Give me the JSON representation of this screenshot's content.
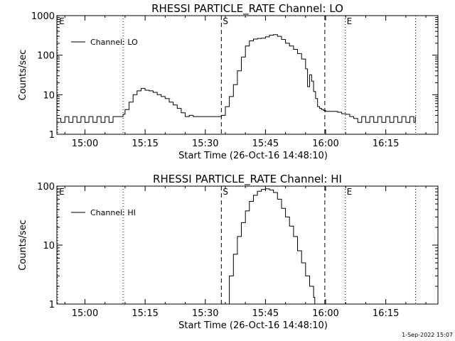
{
  "footer": {
    "timestamp": "1-Sep-2022 15:07"
  },
  "chart_data": [
    {
      "type": "line",
      "title": "RHESSI PARTICLE_RATE Channel: LO",
      "xlabel": "Start Time (26-Oct-16 14:48:10)",
      "ylabel": "Counts/sec",
      "x_unit": "minutes of day (HH:MM)",
      "xlim": [
        893,
        988
      ],
      "ylim": [
        1,
        1000
      ],
      "y_scale": "log",
      "xticks": [
        {
          "v": 900,
          "label": "15:00"
        },
        {
          "v": 915,
          "label": "15:15"
        },
        {
          "v": 930,
          "label": "15:30"
        },
        {
          "v": 945,
          "label": "15:45"
        },
        {
          "v": 960,
          "label": "16:00"
        },
        {
          "v": 975,
          "label": "16:15"
        }
      ],
      "yticks": [
        {
          "v": 1,
          "label": "1"
        },
        {
          "v": 10,
          "label": "10"
        },
        {
          "v": 100,
          "label": "100"
        },
        {
          "v": 1000,
          "label": "1000"
        }
      ],
      "legend": {
        "label": "Channel: LO",
        "placement": "top-left"
      },
      "markers": [
        {
          "x": 893.2,
          "label": "E",
          "style": "dotted"
        },
        {
          "x": 909.5,
          "label": "",
          "style": "dotted"
        },
        {
          "x": 934.0,
          "label": "S",
          "style": "dashed"
        },
        {
          "x": 959.8,
          "label": "",
          "style": "dashed"
        },
        {
          "x": 964.9,
          "label": "E",
          "style": "dotted"
        },
        {
          "x": 982.4,
          "label": "",
          "style": "dotted"
        }
      ],
      "series": [
        {
          "name": "Channel: LO",
          "x": [
            893.2,
            894.0,
            895.0,
            896.0,
            897.0,
            898.0,
            899.0,
            900.0,
            901.0,
            902.0,
            903.0,
            904.0,
            905.0,
            906.0,
            907.0,
            908.0,
            909.0,
            909.5,
            910.0,
            911.0,
            912.0,
            913.0,
            914.0,
            915.0,
            916.0,
            917.0,
            918.0,
            919.0,
            920.0,
            921.0,
            922.0,
            923.0,
            924.0,
            925.0,
            926.0,
            927.0,
            928.0,
            929.0,
            930.0,
            931.0,
            932.0,
            933.0,
            934.0,
            935.0,
            936.0,
            937.0,
            938.0,
            939.0,
            940.0,
            941.0,
            942.0,
            943.0,
            944.0,
            945.0,
            946.0,
            947.0,
            948.0,
            949.0,
            950.0,
            951.0,
            952.0,
            953.0,
            954.0,
            955.0,
            955.5,
            956.0,
            956.5,
            957.0,
            957.5,
            958.0,
            958.5,
            959.0,
            959.5,
            960.0,
            961.0,
            962.0,
            963.0,
            964.0,
            965.0,
            966.0,
            967.0,
            968.0,
            969.0,
            970.0,
            971.0,
            972.0,
            973.0,
            974.0,
            975.0,
            976.0,
            977.0,
            978.0,
            979.0,
            980.0,
            981.0,
            982.0,
            982.4
          ],
          "y": [
            2.5,
            2.0,
            2.8,
            2.0,
            2.8,
            2.0,
            2.8,
            2.0,
            2.8,
            2.0,
            2.8,
            2.0,
            2.8,
            2.0,
            2.8,
            2.8,
            2.8,
            3.2,
            4.2,
            6.5,
            10.0,
            12.5,
            14.5,
            13.0,
            12.5,
            11.5,
            10.0,
            9.0,
            8.0,
            6.5,
            5.5,
            4.5,
            3.5,
            2.8,
            3.0,
            2.8,
            2.8,
            2.8,
            2.8,
            2.8,
            2.8,
            2.8,
            3.0,
            5.0,
            9.0,
            18.0,
            40.0,
            90.0,
            170.0,
            230.0,
            255.0,
            265.0,
            270.0,
            290.0,
            320.0,
            330.0,
            300.0,
            250.0,
            200.0,
            170.0,
            140.0,
            110.0,
            80.0,
            45.0,
            16.0,
            32.0,
            22.0,
            12.0,
            8.0,
            5.0,
            4.5,
            4.2,
            4.0,
            3.8,
            3.8,
            3.8,
            3.6,
            3.3,
            3.2,
            2.8,
            2.5,
            2.0,
            2.8,
            2.0,
            2.8,
            2.0,
            2.8,
            2.0,
            2.8,
            2.0,
            2.8,
            2.0,
            2.8,
            2.0,
            2.8,
            2.0,
            2.8
          ]
        }
      ]
    },
    {
      "type": "line",
      "title": "RHESSI PARTICLE_RATE Channel: HI",
      "xlabel": "Start Time (26-Oct-16 14:48:10)",
      "ylabel": "Counts/sec",
      "x_unit": "minutes of day (HH:MM)",
      "xlim": [
        893,
        988
      ],
      "ylim": [
        1,
        100
      ],
      "y_scale": "log",
      "xticks": [
        {
          "v": 900,
          "label": "15:00"
        },
        {
          "v": 915,
          "label": "15:15"
        },
        {
          "v": 930,
          "label": "15:30"
        },
        {
          "v": 945,
          "label": "15:45"
        },
        {
          "v": 960,
          "label": "16:00"
        },
        {
          "v": 975,
          "label": "16:15"
        }
      ],
      "yticks": [
        {
          "v": 1,
          "label": "1"
        },
        {
          "v": 10,
          "label": "10"
        },
        {
          "v": 100,
          "label": "100"
        }
      ],
      "legend": {
        "label": "Channel: HI",
        "placement": "top-left"
      },
      "markers": [
        {
          "x": 893.2,
          "label": "E",
          "style": "dotted"
        },
        {
          "x": 909.5,
          "label": "",
          "style": "dotted"
        },
        {
          "x": 934.0,
          "label": "S",
          "style": "dashed"
        },
        {
          "x": 959.8,
          "label": "",
          "style": "dashed"
        },
        {
          "x": 964.9,
          "label": "E",
          "style": "dotted"
        },
        {
          "x": 982.4,
          "label": "",
          "style": "dotted"
        }
      ],
      "series": [
        {
          "name": "Channel: HI",
          "x": [
            934.8,
            936.0,
            937.0,
            938.0,
            939.0,
            940.0,
            941.0,
            942.0,
            943.0,
            944.0,
            945.0,
            946.0,
            947.0,
            948.0,
            949.0,
            950.0,
            951.0,
            952.0,
            953.0,
            954.0,
            955.0,
            956.0,
            957.0,
            957.3
          ],
          "y": [
            1.0,
            3.0,
            7.0,
            14.0,
            24.0,
            38.0,
            55.0,
            70.0,
            82.0,
            88.0,
            90.0,
            86.0,
            78.0,
            60.0,
            42.0,
            30.0,
            21.0,
            14.0,
            8.0,
            5.0,
            3.0,
            2.0,
            1.3,
            1.0
          ]
        }
      ]
    }
  ]
}
